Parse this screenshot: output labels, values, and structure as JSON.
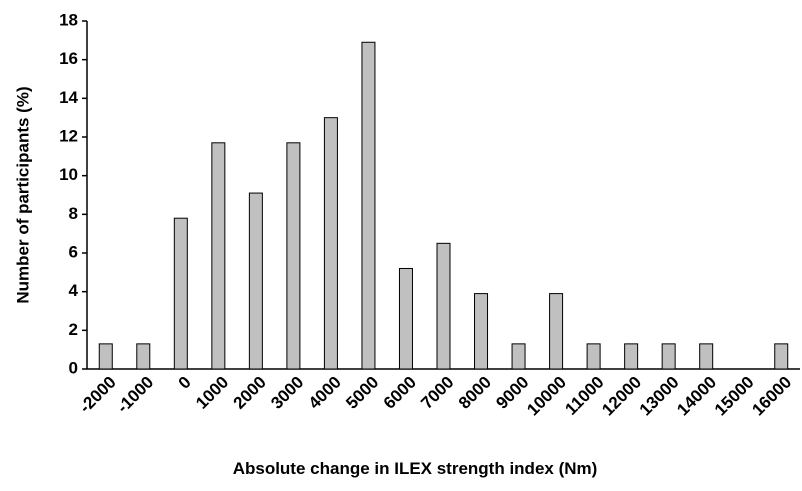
{
  "chart_data": {
    "type": "bar",
    "xlabel": "Absolute change in ILEX strength index (Nm)",
    "ylabel": "Number of participants (%)",
    "categories": [
      "-2000",
      "-1000",
      "0",
      "1000",
      "2000",
      "3000",
      "4000",
      "5000",
      "6000",
      "7000",
      "8000",
      "9000",
      "10000",
      "11000",
      "12000",
      "13000",
      "14000",
      "15000",
      "16000"
    ],
    "values": [
      1.3,
      1.3,
      7.8,
      11.7,
      9.1,
      11.7,
      13.0,
      16.9,
      5.2,
      6.5,
      3.9,
      1.3,
      3.9,
      1.3,
      1.3,
      1.3,
      1.3,
      0,
      1.3
    ],
    "color": "#c0c0c0",
    "ylim": [
      0,
      18
    ],
    "yticks": [
      0,
      2,
      4,
      6,
      8,
      10,
      12,
      14,
      16,
      18
    ],
    "grid": false
  }
}
